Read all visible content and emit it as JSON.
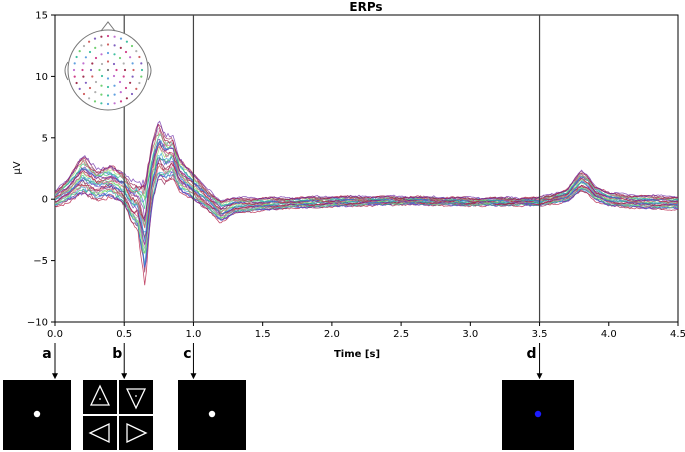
{
  "chart_data": {
    "type": "line",
    "title": "ERPs",
    "xlabel": "Time [s]",
    "ylabel": "µV",
    "xlim": [
      0.0,
      4.5
    ],
    "ylim": [
      -10,
      15
    ],
    "x_ticks": [
      "0.0",
      "0.5",
      "1.0",
      "1.5",
      "2.0",
      "2.5",
      "3.0",
      "3.5",
      "4.0",
      "4.5"
    ],
    "y_ticks": [
      "−10",
      "−5",
      "0",
      "5",
      "10",
      "15"
    ],
    "grid": false,
    "legend": "none",
    "event_lines_s": [
      0.5,
      1.0,
      3.5
    ],
    "series_colors": [
      "#b0103a",
      "#8e1f4f",
      "#6b2aa8",
      "#3f5fd8",
      "#2a9fcf",
      "#2ec27e",
      "#8be05a",
      "#d84a7a",
      "#9aa0aa"
    ],
    "x": [
      0.0,
      0.1,
      0.2,
      0.3,
      0.4,
      0.5,
      0.55,
      0.6,
      0.65,
      0.7,
      0.75,
      0.8,
      0.85,
      0.9,
      0.95,
      1.0,
      1.1,
      1.2,
      1.3,
      1.5,
      1.7,
      2.0,
      2.5,
      3.0,
      3.5,
      3.7,
      3.8,
      3.85,
      3.9,
      4.0,
      4.2,
      4.5
    ],
    "envelope_mean": [
      0.0,
      0.8,
      2.0,
      1.2,
      1.5,
      0.8,
      -0.2,
      -0.5,
      -2.5,
      2.0,
      4.0,
      3.2,
      3.5,
      2.0,
      1.5,
      1.0,
      0.0,
      -1.0,
      -0.5,
      -0.4,
      -0.3,
      -0.2,
      -0.1,
      -0.2,
      -0.2,
      0.3,
      1.5,
      1.2,
      0.5,
      0.0,
      -0.2,
      -0.3
    ],
    "envelope_spread": [
      0.6,
      1.0,
      1.5,
      1.2,
      1.3,
      1.2,
      1.5,
      2.0,
      4.0,
      2.5,
      2.2,
      1.8,
      1.6,
      1.4,
      1.2,
      1.0,
      0.8,
      0.9,
      0.6,
      0.5,
      0.4,
      0.4,
      0.3,
      0.3,
      0.3,
      0.5,
      0.8,
      0.7,
      0.6,
      0.5,
      0.5,
      0.5
    ]
  },
  "markers": {
    "labels": [
      "a",
      "b",
      "c",
      "d"
    ],
    "times_s": [
      0.0,
      0.5,
      1.0,
      3.5
    ]
  },
  "stimuli": {
    "fixation_color": "#ffffff",
    "cue_color": "#1c1cff",
    "background_color": "#000000"
  }
}
